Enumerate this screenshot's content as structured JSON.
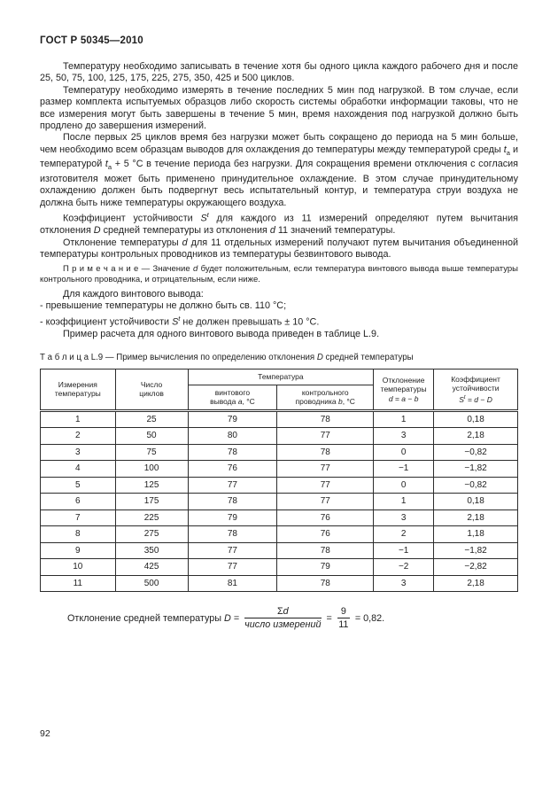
{
  "page": {
    "doc_header": "ГОСТ Р 50345—2010",
    "page_number": "92"
  },
  "paragraphs": {
    "p0": {
      "runs": [
        {
          "t": "Температуру необходимо записывать в течение хотя бы одного цикла каждого рабочего дня и после 25, 50, 75, 100, 125, 175, 225, 275, 350, 425 и 500 циклов."
        }
      ]
    },
    "p1": {
      "runs": [
        {
          "t": "Температуру необходимо измерять в течение последних 5 мин под нагрузкой. В том случае, если размер комплекта испытуемых образцов либо скорость системы обработки информации таковы, что не все измерения могут быть завершены в течение 5 мин, время нахождения под нагрузкой должно быть продлено до завершения измерений."
        }
      ]
    },
    "p2": {
      "runs": [
        {
          "t": "После первых 25 циклов время без нагрузки может быть сокращено до периода на 5 мин больше, чем необходимо всем образцам выводов для охлаждения до температуры между температурой среды "
        },
        {
          "t": "t",
          "s": "i"
        },
        {
          "t": "а",
          "s": "sub"
        },
        {
          "t": " и температурой "
        },
        {
          "t": "t",
          "s": "i"
        },
        {
          "t": "а",
          "s": "sub"
        },
        {
          "t": " + 5 °С в течение периода без нагрузки. Для сокращения времени отключения с согласия изготовителя может быть применено принудительное охлаждение. В этом случае принудительному охлаждению должен быть подвергнут весь испытательный контур, и температура струи воздуха не должна быть ниже температуры окружающего воздуха."
        }
      ]
    },
    "p3": {
      "runs": [
        {
          "t": "Коэффициент устойчивости "
        },
        {
          "t": "S",
          "s": "i"
        },
        {
          "t": "t",
          "s": "sup"
        },
        {
          "t": " для каждого из  11 измерений определяют путем вычитания отклонения "
        },
        {
          "t": "D",
          "s": "i"
        },
        {
          "t": " средней температуры из отклонения "
        },
        {
          "t": "d",
          "s": "i"
        },
        {
          "t": "  11 значений температуры."
        }
      ]
    },
    "p4": {
      "runs": [
        {
          "t": "Отклонение температуры "
        },
        {
          "t": "d",
          "s": "i"
        },
        {
          "t": " для 11 отдельных измерений получают путем вычитания объединенной температуры контрольных проводников из температуры безвинтового вывода."
        }
      ]
    },
    "note": {
      "runs": [
        {
          "t": "П р и м е ч а н и е — Значение "
        },
        {
          "t": "d",
          "s": "i"
        },
        {
          "t": "  будет положительным, если температура винтового вывода выше температуры контрольного проводника, и отрицательным, если ниже."
        }
      ]
    },
    "p6": {
      "runs": [
        {
          "t": "Для каждого винтового вывода:"
        }
      ]
    },
    "p7": {
      "runs": [
        {
          "t": "- превышение температуры не должно быть св. 110 °С;"
        }
      ]
    },
    "p8": {
      "runs": [
        {
          "t": "- коэффициент устойчивости "
        },
        {
          "t": "S",
          "s": "i"
        },
        {
          "t": "t",
          "s": "sup"
        },
        {
          "t": " не должен превышать ± 10 °С."
        }
      ]
    },
    "p9": {
      "runs": [
        {
          "t": "Пример расчета для одного винтового вывода приведен в таблице L.9."
        }
      ]
    }
  },
  "table": {
    "caption_runs": [
      {
        "t": "Т а б л и ц а  L.9 — Пример вычисления по определению отклонения "
      },
      {
        "t": "D",
        "s": "i"
      },
      {
        "t": "  средней температуры"
      }
    ],
    "headers": {
      "measure": {
        "runs": [
          {
            "t": "Измерения\nтемпературы"
          }
        ]
      },
      "cycles": {
        "runs": [
          {
            "t": "Число\nциклов"
          }
        ]
      },
      "temperature_group": {
        "runs": [
          {
            "t": "Температура"
          }
        ]
      },
      "temp_screw": {
        "runs": [
          {
            "t": "винтового\nвывода "
          },
          {
            "t": "а",
            "s": "i"
          },
          {
            "t": ", °С"
          }
        ]
      },
      "temp_control": {
        "runs": [
          {
            "t": "контрольного\nпроводника "
          },
          {
            "t": "b",
            "s": "i"
          },
          {
            "t": ", °С"
          }
        ]
      },
      "deviation": {
        "runs": [
          {
            "t": "Отклонение\nтемпературы\n"
          },
          {
            "t": "d",
            "s": "i"
          },
          {
            "t": " = "
          },
          {
            "t": "а",
            "s": "i"
          },
          {
            "t": " − "
          },
          {
            "t": "b",
            "s": "i"
          }
        ]
      },
      "coefficient": {
        "runs": [
          {
            "t": "Коэффициент\nустойчивости\n"
          },
          {
            "t": "S",
            "s": "i"
          },
          {
            "t": "t",
            "s": "sup"
          },
          {
            "t": " = "
          },
          {
            "t": "d",
            "s": "i"
          },
          {
            "t": " − "
          },
          {
            "t": "D",
            "s": "i"
          }
        ]
      }
    },
    "rows": [
      [
        "1",
        "25",
        "79",
        "78",
        "1",
        "0,18"
      ],
      [
        "2",
        "50",
        "80",
        "77",
        "3",
        "2,18"
      ],
      [
        "3",
        "75",
        "78",
        "78",
        "0",
        "−0,82"
      ],
      [
        "4",
        "100",
        "76",
        "77",
        "−1",
        "−1,82"
      ],
      [
        "5",
        "125",
        "77",
        "77",
        "0",
        "−0,82"
      ],
      [
        "6",
        "175",
        "78",
        "77",
        "1",
        "0,18"
      ],
      [
        "7",
        "225",
        "79",
        "76",
        "3",
        "2,18"
      ],
      [
        "8",
        "275",
        "78",
        "76",
        "2",
        "1,18"
      ],
      [
        "9",
        "350",
        "77",
        "78",
        "−1",
        "−1,82"
      ],
      [
        "10",
        "425",
        "77",
        "79",
        "−2",
        "−2,82"
      ],
      [
        "11",
        "500",
        "81",
        "78",
        "3",
        "2,18"
      ]
    ]
  },
  "chart_data": {
    "type": "table",
    "title": "Таблица L.9 — Пример вычисления по определению отклонения D средней температуры",
    "columns": [
      "Измерения температуры",
      "Число циклов",
      "Температура винтового вывода а, °С",
      "Температура контрольного проводника b, °С",
      "Отклонение температуры d = а − b",
      "Коэффициент устойчивости St = d − D"
    ],
    "rows": [
      [
        1,
        25,
        79,
        78,
        1,
        0.18
      ],
      [
        2,
        50,
        80,
        77,
        3,
        2.18
      ],
      [
        3,
        75,
        78,
        78,
        0,
        -0.82
      ],
      [
        4,
        100,
        76,
        77,
        -1,
        -1.82
      ],
      [
        5,
        125,
        77,
        77,
        0,
        -0.82
      ],
      [
        6,
        175,
        78,
        77,
        1,
        0.18
      ],
      [
        7,
        225,
        79,
        76,
        3,
        2.18
      ],
      [
        8,
        275,
        78,
        76,
        2,
        1.18
      ],
      [
        9,
        350,
        77,
        78,
        -1,
        -1.82
      ],
      [
        10,
        425,
        77,
        79,
        -2,
        -2.82
      ],
      [
        11,
        500,
        81,
        78,
        3,
        2.18
      ]
    ]
  },
  "formula": {
    "lead_runs": [
      {
        "t": "Отклонение средней температуры "
      },
      {
        "t": "D",
        "s": "i"
      },
      {
        "t": " = "
      }
    ],
    "frac1_num_runs": [
      {
        "t": "Σ"
      },
      {
        "t": "d",
        "s": "i"
      }
    ],
    "frac1_den_runs": [
      {
        "t": "число измерений",
        "s": "i"
      }
    ],
    "equals": " = ",
    "frac2_num": "9",
    "frac2_den": "11",
    "tail": " = 0,82."
  }
}
